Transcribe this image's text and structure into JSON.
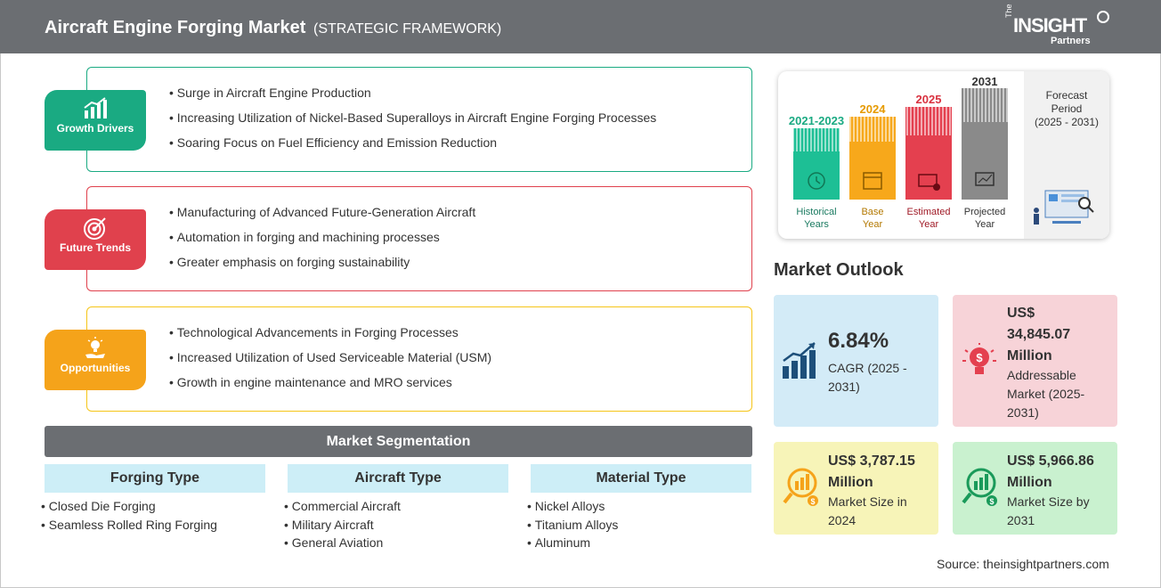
{
  "header": {
    "title": "Aircraft Engine Forging Market",
    "subtitle": "(STRATEGIC FRAMEWORK)",
    "logo_the": "The",
    "logo_word": "INSIGHT",
    "logo_partners": "Partners"
  },
  "colors": {
    "header_bg": "#6b6e72",
    "growth": "#1aaa82",
    "trends": "#e0414d",
    "opportunities": "#f5a31a",
    "segment_head_bg": "#cdeef7",
    "cagr_card": "#d3ebf7",
    "addressable_card": "#f7d3d8",
    "size2024_card": "#f7f4b8",
    "size2031_card": "#c9f1cf"
  },
  "growth_drivers": {
    "label": "Growth Drivers",
    "icon": "bar-chart-growth-icon",
    "items": [
      "Surge in Aircraft Engine Production",
      "Increasing Utilization of Nickel-Based Superalloys in Aircraft Engine Forging Processes",
      "Soaring Focus on Fuel Efficiency and Emission Reduction"
    ]
  },
  "future_trends": {
    "label": "Future Trends",
    "icon": "target-icon",
    "items": [
      "Manufacturing of Advanced Future-Generation Aircraft",
      "Automation in forging and machining processes",
      "Greater emphasis on forging sustainability"
    ]
  },
  "opportunities": {
    "label": "Opportunities",
    "icon": "lightbulb-hand-icon",
    "items": [
      "Technological Advancements in Forging Processes",
      "Increased Utilization of Used Serviceable Material (USM)",
      "Growth in engine maintenance and MRO services"
    ]
  },
  "segmentation": {
    "title": "Market Segmentation",
    "columns": [
      {
        "title": "Forging Type",
        "items": [
          "Closed Die Forging",
          "Seamless Rolled Ring Forging"
        ]
      },
      {
        "title": "Aircraft Type",
        "items": [
          "Commercial Aircraft",
          "Military Aircraft",
          "General Aviation"
        ]
      },
      {
        "title": "Material Type",
        "items": [
          "Nickel Alloys",
          "Titanium Alloys",
          "Aluminum"
        ]
      }
    ]
  },
  "timeline": {
    "bars": [
      {
        "year": "2021-2023",
        "label_line1": "Historical",
        "label_line2": "Years",
        "color": "#1dbf95",
        "icon": "history-icon"
      },
      {
        "year": "2024",
        "label_line1": "Base",
        "label_line2": "Year",
        "color": "#f7a81b",
        "icon": "calendar-icon"
      },
      {
        "year": "2025",
        "label_line1": "Estimated",
        "label_line2": "Year",
        "color": "#e4404f",
        "icon": "estimate-icon"
      },
      {
        "year": "2031",
        "label_line1": "Projected",
        "label_line2": "Year",
        "color": "#8a8a8a",
        "icon": "presentation-icon"
      }
    ],
    "forecast_line1": "Forecast",
    "forecast_line2": "Period",
    "forecast_line3": "(2025 - 2031)"
  },
  "market_outlook": {
    "title": "Market Outlook",
    "cagr": {
      "value": "6.84%",
      "label_line1": "CAGR (2025 -",
      "label_line2": "2031)"
    },
    "addressable": {
      "line1": "US$",
      "line2": "34,845.07",
      "line3": "Million",
      "label_line1": "Addressable",
      "label_line2": "Market (2025-",
      "label_line3": "2031)"
    },
    "size_2024": {
      "line1": "US$ 3,787.15",
      "line2": "Million",
      "label_line1": "Market Size in",
      "label_line2": "2024"
    },
    "size_2031": {
      "line1": "US$ 5,966.86",
      "line2": "Million",
      "label_line1": "Market Size by",
      "label_line2": "2031"
    }
  },
  "source": "Source: theinsightpartners.com"
}
